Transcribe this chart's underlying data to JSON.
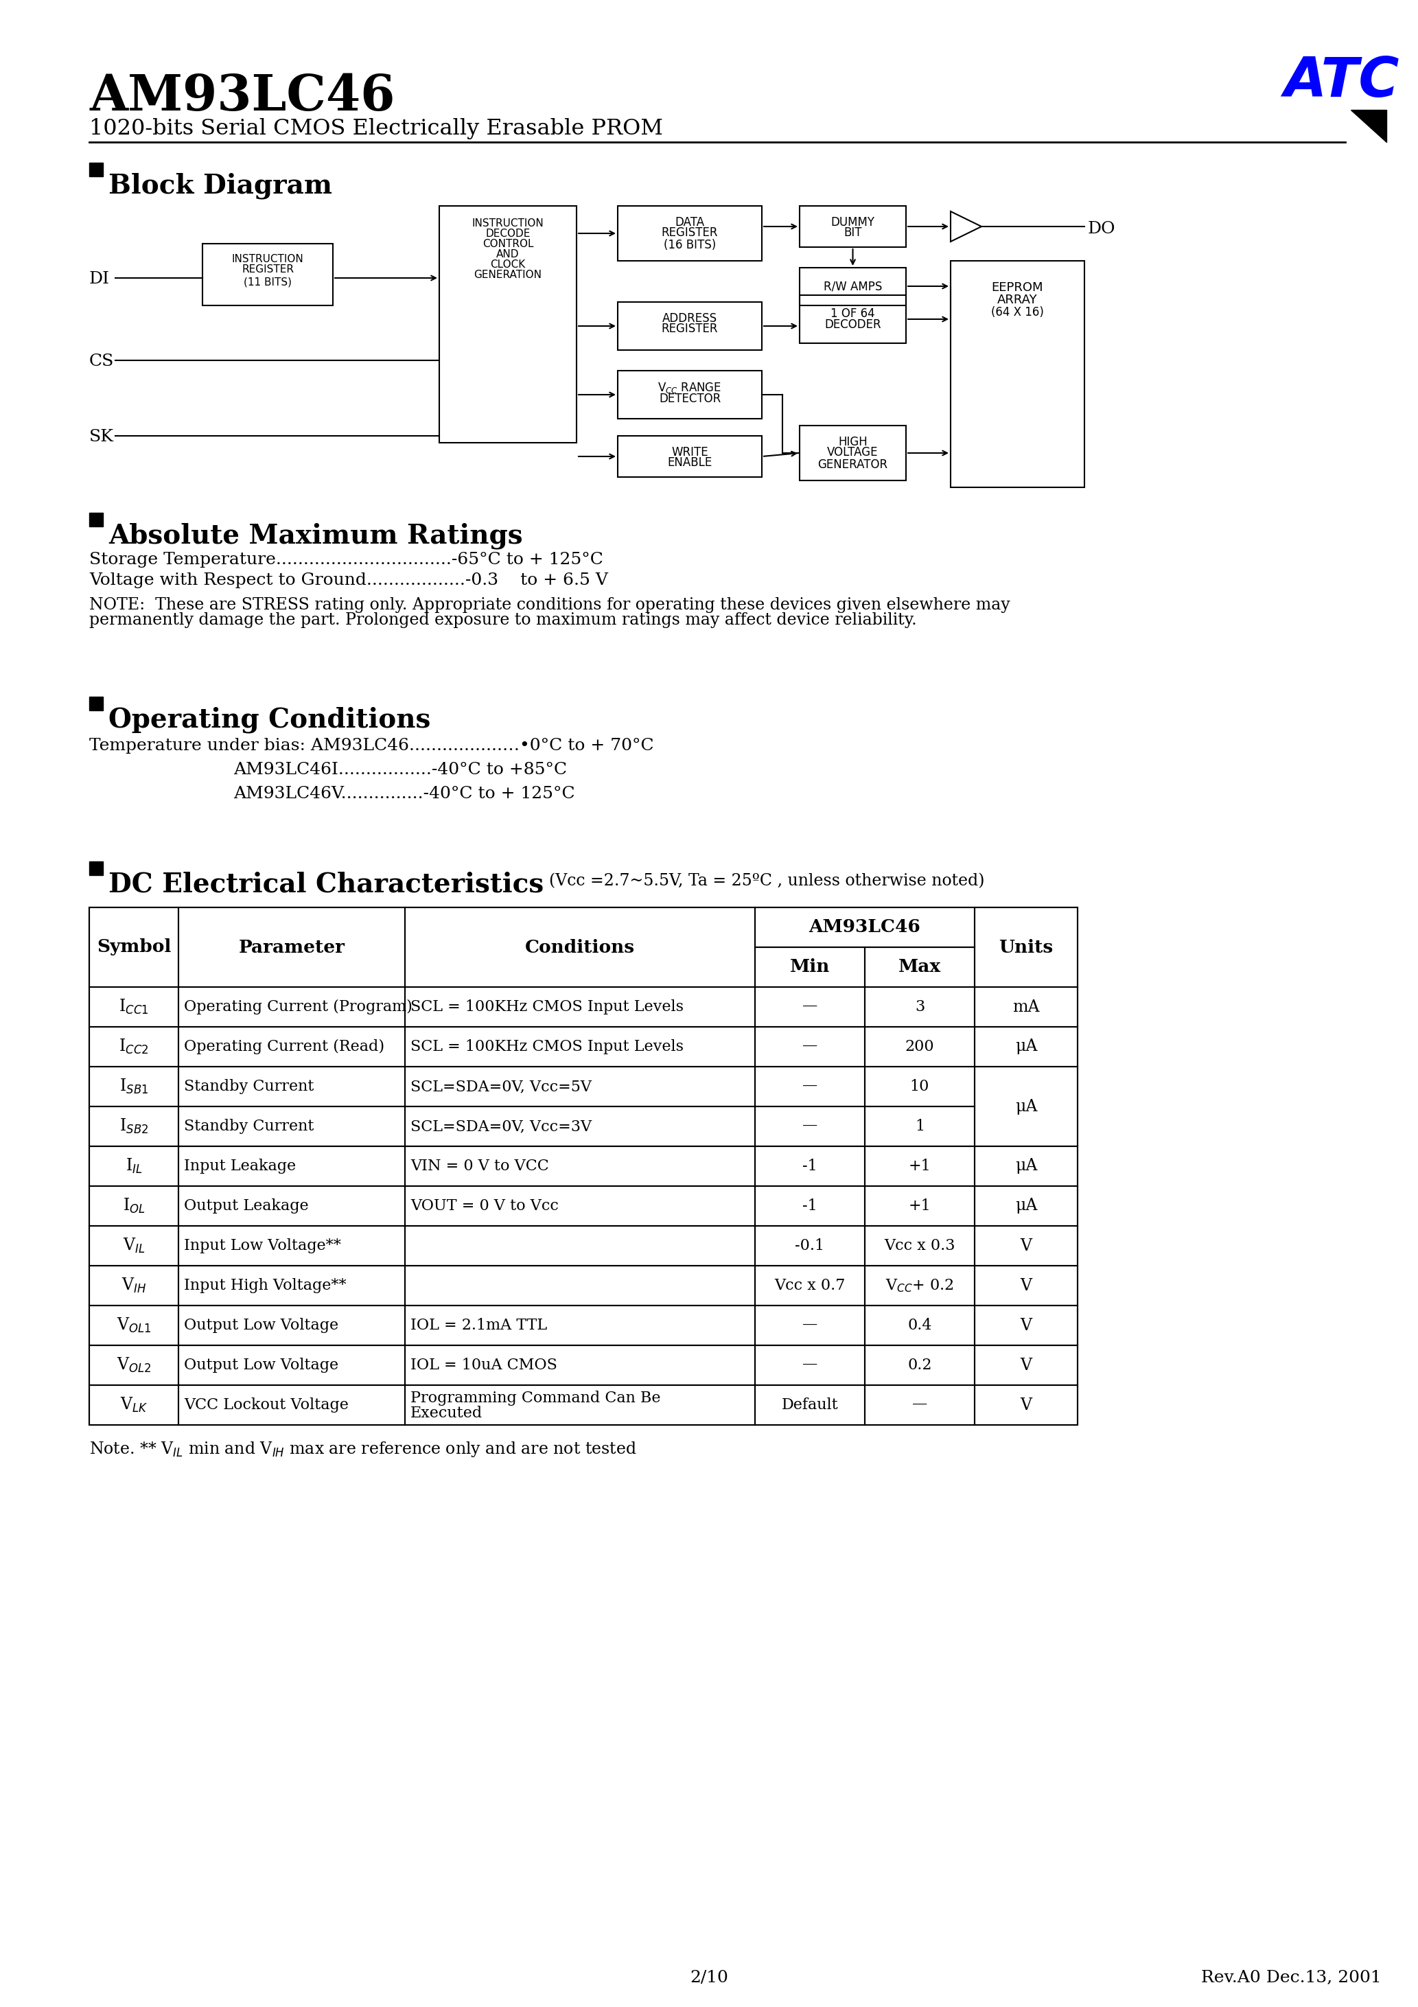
{
  "title": "AM93LC46",
  "subtitle": "1020-bits Serial CMOS Electrically Erasable PROM",
  "logo_text": "ATC",
  "logo_color": "#0000FF",
  "section1_title": "Block Diagram",
  "section2_title": "Absolute Maximum Ratings",
  "section3_title": "Operating Conditions",
  "section4_title": "DC Electrical Characteristics",
  "dc_subtitle": "(Vcc =2.7~5.5V, Ta = 25ºC , unless otherwise noted)",
  "abs_max_lines": [
    "Storage Temperature................................-65°C to + 125°C",
    "Voltage with Respect to Ground..................-0.3    to + 6.5 V"
  ],
  "abs_max_note": "NOTE:  These are STRESS rating only. Appropriate conditions for operating these devices given elsewhere may\npermanently damage the part. Prolonged exposure to maximum ratings may affect device reliability.",
  "op_cond_line1": "Temperature under bias: AM93LC46.................…•0°C to + 70°C",
  "op_cond_line2": "AM93LC46I.................-40°C to +85°C",
  "op_cond_line3": "AM93LC46V...............-40°C to + 125°C",
  "footer_left": "2/10",
  "footer_right": "Rev.A0 Dec.13, 2001",
  "bg_color": "#FFFFFF",
  "row_symbols": [
    "I$_{CC1}$",
    "I$_{CC2}$",
    "I$_{SB1}$",
    "I$_{SB2}$",
    "I$_{IL}$",
    "I$_{OL}$",
    "V$_{IL}$",
    "V$_{IH}$",
    "V$_{OL1}$",
    "V$_{OL2}$",
    "V$_{LK}$"
  ],
  "row_params": [
    "Operating Current (Program)",
    "Operating Current (Read)",
    "Standby Current",
    "Standby Current",
    "Input Leakage",
    "Output Leakage",
    "Input Low Voltage**",
    "Input High Voltage**",
    "Output Low Voltage",
    "Output Low Voltage",
    "VCC Lockout Voltage"
  ],
  "row_conds": [
    "SCL = 100KHz CMOS Input Levels",
    "SCL = 100KHz CMOS Input Levels",
    "SCL=SDA=0V, Vcc=5V",
    "SCL=SDA=0V, Vcc=3V",
    "VIN = 0 V to VCC",
    "VOUT = 0 V to Vcc",
    "",
    "",
    "IOL = 2.1mA TTL",
    "IOL = 10uA CMOS",
    "Programming Command Can Be\nExecuted"
  ],
  "row_mins": [
    "—",
    "—",
    "—",
    "—",
    "-1",
    "-1",
    "-0.1",
    "Vcc x 0.7",
    "—",
    "—",
    "Default"
  ],
  "row_maxs": [
    "3",
    "200",
    "10",
    "1",
    "+1",
    "+1",
    "Vcc x 0.3",
    "V$_{CC}$+ 0.2",
    "0.4",
    "0.2",
    "—"
  ],
  "row_units": [
    "mA",
    "μA",
    "μA",
    "μA",
    "μA",
    "μA",
    "V",
    "V",
    "V",
    "V",
    "V"
  ]
}
